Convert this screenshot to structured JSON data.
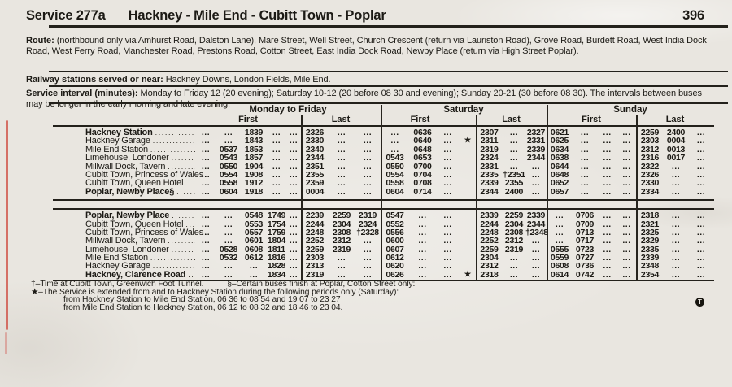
{
  "page": {
    "service": "Service 277a",
    "title": "Hackney - Mile End - Cubitt Town - Poplar",
    "page_number": "396"
  },
  "route": {
    "label": "Route:",
    "text": "(northbound only via Amhurst Road, Dalston Lane), Mare Street, Well Street, Church Crescent (return via Lauriston Road), Grove Road, Burdett Road, West India Dock Road, West Ferry Road, Manchester Road, Prestons Road, Cotton Street, East India Dock Road, Newby Place (return via High Street Poplar)."
  },
  "railway": {
    "label": "Railway stations served or near:",
    "text": "Hackney Downs, London Fields, Mile End."
  },
  "interval": {
    "label": "Service interval (minutes):",
    "text": "Monday to Friday 12 (20 evening); Saturday 10-12 (20 before 08 30 and evening); Sunday 20-21 (30 before 08 30).  The intervals between buses may be longer in the early morning and late evening."
  },
  "day_headers": [
    {
      "day": "Monday to Friday",
      "first": "First",
      "last": "Last"
    },
    {
      "day": "Saturday",
      "first": "First",
      "last": "Last"
    },
    {
      "day": "Sunday",
      "first": "First",
      "last": "Last"
    }
  ],
  "blocks": [
    {
      "rows": [
        {
          "name": "Hackney Station",
          "bold": true,
          "cells": [
            "...",
            "...",
            "1839",
            "...",
            "...",
            "2326",
            "...",
            "...",
            "...",
            "0636",
            "...",
            "",
            "2307",
            "...",
            "2327",
            "0621",
            "...",
            "...",
            "...",
            "2259",
            "2400",
            "..."
          ]
        },
        {
          "name": "Hackney Garage",
          "bold": false,
          "cells": [
            "...",
            "...",
            "1843",
            "...",
            "...",
            "2330",
            "...",
            "...",
            "...",
            "0640",
            "...",
            "★",
            "2311",
            "...",
            "2331",
            "0625",
            "...",
            "...",
            "...",
            "2303",
            "0004",
            "..."
          ]
        },
        {
          "name": "Mile End Station",
          "bold": false,
          "cells": [
            "...",
            "0537",
            "1853",
            "...",
            "...",
            "2340",
            "...",
            "...",
            "...",
            "0648",
            "...",
            "",
            "2319",
            "...",
            "2339",
            "0634",
            "...",
            "...",
            "...",
            "2312",
            "0013",
            "..."
          ]
        },
        {
          "name": "Limehouse, Londoner",
          "bold": false,
          "cells": [
            "...",
            "0543",
            "1857",
            "...",
            "...",
            "2344",
            "...",
            "...",
            "0543",
            "0653",
            "...",
            "",
            "2324",
            "...",
            "2344",
            "0638",
            "...",
            "...",
            "...",
            "2316",
            "0017",
            "..."
          ]
        },
        {
          "name": "Millwall Dock, Tavern",
          "bold": false,
          "cells": [
            "...",
            "0550",
            "1904",
            "...",
            "...",
            "2351",
            "...",
            "...",
            "0550",
            "0700",
            "...",
            "",
            "2331",
            "...",
            "...",
            "0644",
            "...",
            "...",
            "...",
            "2322",
            "...",
            "..."
          ]
        },
        {
          "name": "Cubitt Town, Princess of Wales",
          "bold": false,
          "cells": [
            "...",
            "0554",
            "1908",
            "...",
            "...",
            "2355",
            "...",
            "...",
            "0554",
            "0704",
            "...",
            "",
            "2335",
            "†2351",
            "...",
            "0648",
            "...",
            "...",
            "...",
            "2326",
            "...",
            "..."
          ]
        },
        {
          "name": "Cubitt Town, Queen Hotel",
          "bold": false,
          "cells": [
            "...",
            "0558",
            "1912",
            "...",
            "...",
            "2359",
            "...",
            "...",
            "0558",
            "0708",
            "...",
            "",
            "2339",
            "2355",
            "...",
            "0652",
            "...",
            "...",
            "...",
            "2330",
            "...",
            "..."
          ]
        },
        {
          "name": "Poplar, Newby Place§",
          "bold": true,
          "cells": [
            "...",
            "0604",
            "1918",
            "...",
            "...",
            "0004",
            "...",
            "...",
            "0604",
            "0714",
            "...",
            "",
            "2344",
            "2400",
            "...",
            "0657",
            "...",
            "...",
            "...",
            "2334",
            "...",
            "..."
          ]
        }
      ]
    },
    {
      "rows": [
        {
          "name": "Poplar, Newby Place",
          "bold": true,
          "cells": [
            "...",
            "...",
            "0548",
            "1749",
            "...",
            "2239",
            "2259",
            "2319",
            "0547",
            "...",
            "...",
            "",
            "2339",
            "2259",
            "2339",
            "...",
            "0706",
            "...",
            "...",
            "2318",
            "...",
            "..."
          ]
        },
        {
          "name": "Cubitt Town, Queen Hotel",
          "bold": false,
          "cells": [
            "...",
            "...",
            "0553",
            "1754",
            "...",
            "2244",
            "2304",
            "2324",
            "0552",
            "...",
            "...",
            "",
            "2244",
            "2304",
            "2344",
            "...",
            "0709",
            "...",
            "...",
            "2321",
            "...",
            "..."
          ]
        },
        {
          "name": "Cubitt Town, Princess of Wales",
          "bold": false,
          "cells": [
            "...",
            "...",
            "0557",
            "1759",
            "...",
            "2248",
            "2308",
            "†2328",
            "0556",
            "...",
            "...",
            "",
            "2248",
            "2308",
            "†2348",
            "...",
            "0713",
            "...",
            "...",
            "2325",
            "...",
            "..."
          ]
        },
        {
          "name": "Millwall Dock, Tavern",
          "bold": false,
          "cells": [
            "...",
            "...",
            "0601",
            "1804",
            "...",
            "2252",
            "2312",
            "...",
            "0600",
            "...",
            "...",
            "",
            "2252",
            "2312",
            "...",
            "...",
            "0717",
            "...",
            "...",
            "2329",
            "...",
            "..."
          ]
        },
        {
          "name": "Limehouse, Londoner",
          "bold": false,
          "cells": [
            "...",
            "0528",
            "0608",
            "1811",
            "...",
            "2259",
            "2319",
            "...",
            "0607",
            "...",
            "...",
            "",
            "2259",
            "2319",
            "...",
            "0555",
            "0723",
            "...",
            "...",
            "2335",
            "...",
            "..."
          ]
        },
        {
          "name": "Mile End Station",
          "bold": false,
          "cells": [
            "...",
            "0532",
            "0612",
            "1816",
            "...",
            "2303",
            "...",
            "...",
            "0612",
            "...",
            "...",
            "",
            "2304",
            "...",
            "...",
            "0559",
            "0727",
            "...",
            "...",
            "2339",
            "...",
            "..."
          ]
        },
        {
          "name": "Hackney Garage",
          "bold": false,
          "cells": [
            "...",
            "...",
            "...",
            "1828",
            "...",
            "2313",
            "...",
            "...",
            "0620",
            "...",
            "...",
            "",
            "2312",
            "...",
            "...",
            "0608",
            "0736",
            "...",
            "...",
            "2348",
            "...",
            "..."
          ]
        },
        {
          "name": "Hackney, Clarence Road",
          "bold": true,
          "cells": [
            "...",
            "...",
            "...",
            "1834",
            "...",
            "2319",
            "...",
            "...",
            "0626",
            "...",
            "...",
            "★",
            "2318",
            "...",
            "...",
            "0614",
            "0742",
            "...",
            "...",
            "2354",
            "...",
            "..."
          ]
        }
      ]
    }
  ],
  "footnotes": {
    "dagger": "†–Time at Cubitt Town, Greenwich Foot Tunnel.",
    "section": "§–Certain buses finish at Poplar, Cotton Street only:",
    "star": "★–The Service is extended from and to Hackney Station during the following periods only (Saturday):",
    "star_detail_1": "from Hackney Station to Mile End Station, 06 36 to 08 54 and 19 07 to 23 27",
    "star_detail_2": "from Mile End Station to Hackney Station, 06 12 to 08 32 and 18 46 to 23 04."
  },
  "symbols": {
    "circle_t": "T"
  }
}
